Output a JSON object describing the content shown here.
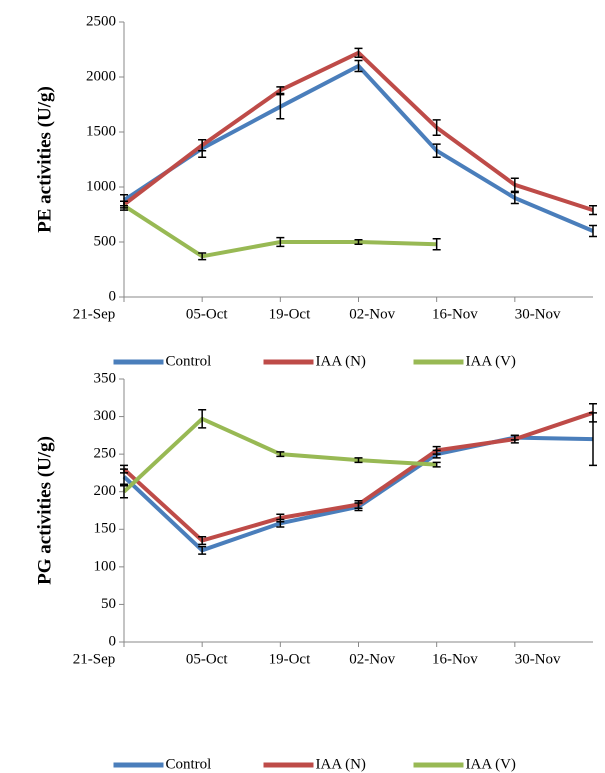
{
  "chart_data": [
    {
      "type": "line",
      "y_label": "PE activities (U/g)",
      "x": [
        0,
        14,
        28,
        42,
        56,
        70,
        84
      ],
      "xlim": [
        0,
        84
      ],
      "xticks": [
        {
          "value": 0,
          "label": "21-Sep"
        },
        {
          "value": 14,
          "label": "05-Oct"
        },
        {
          "value": 28,
          "label": "19-Oct"
        },
        {
          "value": 42,
          "label": "02-Nov"
        },
        {
          "value": 56,
          "label": "16-Nov"
        },
        {
          "value": 70,
          "label": "30-Nov"
        }
      ],
      "ylim": [
        0,
        2500
      ],
      "yticks": [
        0,
        500,
        1000,
        1500,
        2000,
        2500
      ],
      "series": [
        {
          "name": "Control",
          "color": "#4a7ebb",
          "values": [
            880,
            1350,
            1730,
            2100,
            1330,
            900,
            600
          ],
          "errors": [
            50,
            80,
            110,
            50,
            60,
            50,
            50
          ]
        },
        {
          "name": "IAA (N)",
          "color": "#be4b48",
          "values": [
            840,
            1380,
            1880,
            2220,
            1540,
            1020,
            790
          ],
          "errors": [
            30,
            50,
            30,
            40,
            70,
            60,
            40
          ]
        },
        {
          "name": "IAA (V)",
          "color": "#98b954",
          "values": [
            830,
            370,
            500,
            500,
            480,
            null,
            null
          ],
          "errors": [
            40,
            30,
            40,
            20,
            50,
            null,
            null
          ]
        }
      ]
    },
    {
      "type": "line",
      "y_label": "PG activities (U/g)",
      "x": [
        0,
        14,
        28,
        42,
        56,
        70,
        84
      ],
      "xlim": [
        0,
        84
      ],
      "xticks": [
        {
          "value": 0,
          "label": "21-Sep"
        },
        {
          "value": 14,
          "label": "05-Oct"
        },
        {
          "value": 28,
          "label": "19-Oct"
        },
        {
          "value": 42,
          "label": "02-Nov"
        },
        {
          "value": 56,
          "label": "16-Nov"
        },
        {
          "value": 70,
          "label": "30-Nov"
        }
      ],
      "ylim": [
        0,
        350
      ],
      "yticks": [
        0,
        50,
        100,
        150,
        200,
        250,
        300,
        350
      ],
      "series": [
        {
          "name": "Control",
          "color": "#4a7ebb",
          "values": [
            220,
            122,
            158,
            180,
            250,
            272,
            270
          ],
          "errors": [
            10,
            5,
            5,
            5,
            5,
            3,
            35
          ]
        },
        {
          "name": "IAA (N)",
          "color": "#be4b48",
          "values": [
            230,
            135,
            165,
            183,
            255,
            270,
            305
          ],
          "errors": [
            5,
            5,
            5,
            5,
            5,
            5,
            12
          ]
        },
        {
          "name": "IAA (V)",
          "color": "#98b954",
          "values": [
            200,
            297,
            250,
            242,
            236,
            null,
            null
          ],
          "errors": [
            8,
            12,
            3,
            3,
            3,
            null,
            null
          ]
        }
      ]
    }
  ]
}
